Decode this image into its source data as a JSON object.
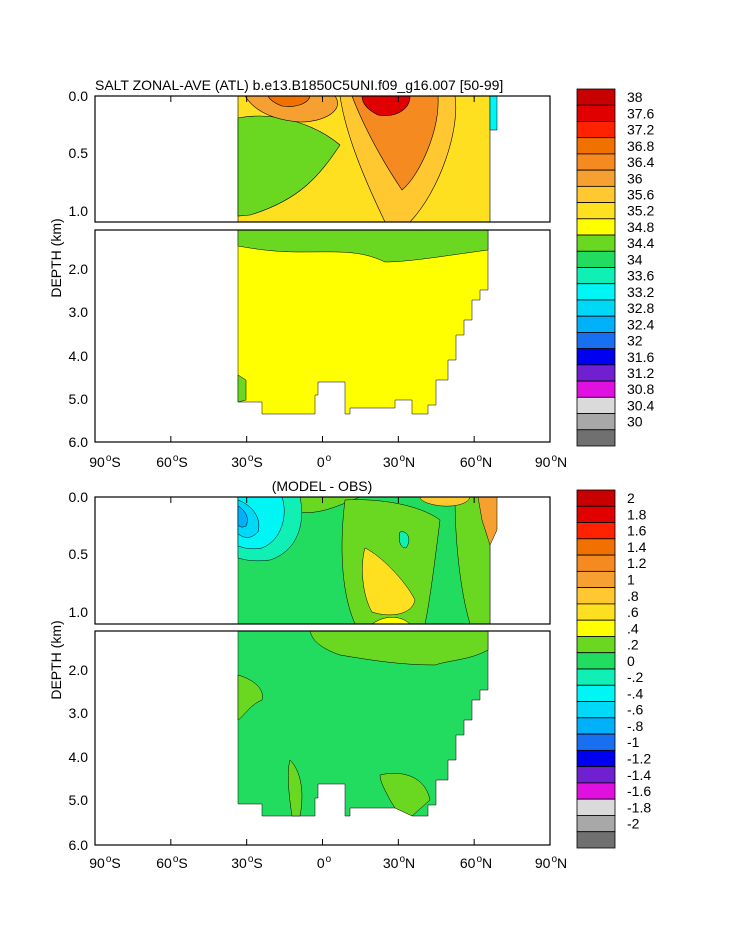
{
  "chart_data": [
    {
      "type": "heatmap",
      "title": "SALT ZONAL-AVE (ATL) b.e13.B1850C5UNI.f09_g16.007 [50-99]",
      "ylabel": "DEPTH (km)",
      "xlabel": "",
      "x_ticks": [
        {
          "value": -90,
          "num": "90",
          "hemi": "S"
        },
        {
          "value": -60,
          "num": "60",
          "hemi": "S"
        },
        {
          "value": -30,
          "num": "30",
          "hemi": "S"
        },
        {
          "value": 0,
          "num": "0",
          "hemi": ""
        },
        {
          "value": 30,
          "num": "30",
          "hemi": "N"
        },
        {
          "value": 60,
          "num": "60",
          "hemi": "N"
        },
        {
          "value": 90,
          "num": "90",
          "hemi": "N"
        }
      ],
      "xlim": [
        -90,
        90
      ],
      "y_ticks_top": [
        "0.0",
        "0.5",
        "1.0"
      ],
      "y_ticks_bottom": [
        "2.0",
        "3.0",
        "4.0",
        "5.0",
        "6.0"
      ],
      "ylim": [
        0,
        6
      ],
      "colorbar_labels": [
        "38",
        "37.6",
        "37.2",
        "36.8",
        "36.4",
        "36",
        "35.6",
        "35.2",
        "34.8",
        "34.4",
        "34",
        "33.6",
        "33.2",
        "32.8",
        "32.4",
        "32",
        "31.6",
        "31.2",
        "30.8",
        "30.4",
        "30"
      ],
      "colorbar_colors": [
        "#c80000",
        "#e00000",
        "#ff2200",
        "#f07000",
        "#f58a20",
        "#f5a030",
        "#ffc830",
        "#ffe020",
        "#ffff00",
        "#6ad820",
        "#22dc60",
        "#10f0b4",
        "#00f5f5",
        "#00d8f8",
        "#00b0f8",
        "#1870f0",
        "#0000f0",
        "#7020d0",
        "#e010e0",
        "#dadada",
        "#a8a8a8",
        "#707070"
      ],
      "zones": [
        {
          "name": "upper-ocean-yellow",
          "value": 35.0
        },
        {
          "name": "south-atlantic-green",
          "value": 34.6
        },
        {
          "name": "subtropical-orange",
          "value": 35.8
        },
        {
          "name": "north-atlantic-max",
          "value": 37.2
        },
        {
          "name": "deep-ocean-yellow",
          "value": 34.9
        }
      ]
    },
    {
      "type": "heatmap",
      "title": "(MODEL - OBS)",
      "ylabel": "DEPTH (km)",
      "xlabel": "",
      "x_ticks": [
        {
          "value": -90,
          "num": "90",
          "hemi": "S"
        },
        {
          "value": -60,
          "num": "60",
          "hemi": "S"
        },
        {
          "value": -30,
          "num": "30",
          "hemi": "S"
        },
        {
          "value": 0,
          "num": "0",
          "hemi": ""
        },
        {
          "value": 30,
          "num": "30",
          "hemi": "N"
        },
        {
          "value": 60,
          "num": "60",
          "hemi": "N"
        },
        {
          "value": 90,
          "num": "90",
          "hemi": "N"
        }
      ],
      "xlim": [
        -90,
        90
      ],
      "y_ticks_top": [
        "0.0",
        "0.5",
        "1.0"
      ],
      "y_ticks_bottom": [
        "2.0",
        "3.0",
        "4.0",
        "5.0",
        "6.0"
      ],
      "ylim": [
        0,
        6
      ],
      "colorbar_labels": [
        "2",
        "1.8",
        "1.6",
        "1.4",
        "1.2",
        "1",
        ".8",
        ".6",
        ".4",
        ".2",
        "0",
        "-.2",
        "-.4",
        "-.6",
        "-.8",
        "-1",
        "-1.2",
        "-1.4",
        "-1.6",
        "-1.8",
        "-2"
      ],
      "colorbar_colors": [
        "#c80000",
        "#e00000",
        "#ff2200",
        "#f07000",
        "#f58a20",
        "#f5a030",
        "#ffc830",
        "#ffe020",
        "#ffff00",
        "#6ad820",
        "#22dc60",
        "#10f0b4",
        "#00f5f5",
        "#00d8f8",
        "#00b0f8",
        "#1870f0",
        "#0000f0",
        "#7020d0",
        "#e010e0",
        "#dadada",
        "#a8a8a8",
        "#707070"
      ],
      "zones": [
        {
          "name": "background-green",
          "value": 0.1
        },
        {
          "name": "light-green-band",
          "value": 0.3
        },
        {
          "name": "fresh-anomaly-south",
          "value": -0.5
        },
        {
          "name": "salty-anomaly-subtropics",
          "value": 0.6
        },
        {
          "name": "positive-anomaly-north",
          "value": 0.5
        }
      ]
    }
  ]
}
